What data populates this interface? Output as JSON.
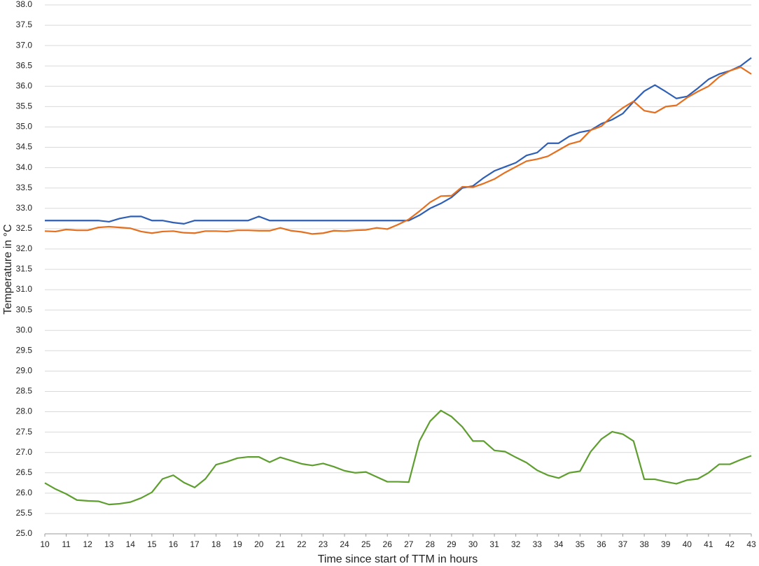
{
  "chart_data": {
    "type": "line",
    "x_label": "Time since start of TTM in hours",
    "y_label": "Temperature in °C",
    "x": [
      10,
      10.5,
      11,
      11.5,
      12,
      12.5,
      13,
      13.5,
      14,
      14.5,
      15,
      15.5,
      16,
      16.5,
      17,
      17.5,
      18,
      18.5,
      19,
      19.5,
      20,
      20.5,
      21,
      21.5,
      22,
      22.5,
      23,
      23.5,
      24,
      24.5,
      25,
      25.5,
      26,
      26.5,
      27,
      27.5,
      28,
      28.5,
      29,
      29.5,
      30,
      30.5,
      31,
      31.5,
      32,
      32.5,
      33,
      33.5,
      34,
      34.5,
      35,
      35.5,
      36,
      36.5,
      37,
      37.5,
      38,
      38.5,
      39,
      39.5,
      40,
      40.5,
      41,
      41.5,
      42,
      42.5,
      43
    ],
    "series": [
      {
        "color": "#2e5fb5",
        "values": [
          32.7,
          32.7,
          32.7,
          32.7,
          32.7,
          32.7,
          32.67,
          32.75,
          32.8,
          32.8,
          32.7,
          32.7,
          32.65,
          32.62,
          32.7,
          32.7,
          32.7,
          32.7,
          32.7,
          32.7,
          32.8,
          32.7,
          32.7,
          32.7,
          32.7,
          32.7,
          32.7,
          32.7,
          32.7,
          32.7,
          32.7,
          32.7,
          32.7,
          32.7,
          32.7,
          32.83,
          33.0,
          33.12,
          33.27,
          33.5,
          33.55,
          33.75,
          33.92,
          34.02,
          34.12,
          34.3,
          34.37,
          34.6,
          34.6,
          34.77,
          34.87,
          34.92,
          35.08,
          35.18,
          35.33,
          35.62,
          35.88,
          36.03,
          35.87,
          35.7,
          35.75,
          35.95,
          36.17,
          36.3,
          36.38,
          36.5,
          36.7
        ]
      },
      {
        "color": "#e46f1f",
        "values": [
          32.44,
          32.43,
          32.48,
          32.46,
          32.46,
          32.53,
          32.55,
          32.53,
          32.51,
          32.43,
          32.39,
          32.43,
          32.44,
          32.4,
          32.39,
          32.44,
          32.44,
          32.43,
          32.46,
          32.46,
          32.45,
          32.45,
          32.52,
          32.45,
          32.42,
          32.37,
          32.39,
          32.45,
          32.44,
          32.46,
          32.47,
          32.52,
          32.49,
          32.6,
          32.73,
          32.93,
          33.15,
          33.3,
          33.31,
          33.53,
          33.52,
          33.61,
          33.72,
          33.88,
          34.02,
          34.16,
          34.21,
          34.28,
          34.43,
          34.58,
          34.65,
          34.92,
          35.02,
          35.27,
          35.47,
          35.63,
          35.4,
          35.35,
          35.5,
          35.53,
          35.72,
          35.87,
          36.0,
          36.23,
          36.38,
          36.47,
          36.3
        ]
      },
      {
        "color": "#5e9e2f",
        "values": [
          26.25,
          26.1,
          25.98,
          25.83,
          25.81,
          25.8,
          25.72,
          25.74,
          25.78,
          25.88,
          26.02,
          26.35,
          26.44,
          26.26,
          26.14,
          26.35,
          26.7,
          26.77,
          26.86,
          26.89,
          26.89,
          26.76,
          26.88,
          26.8,
          26.72,
          26.68,
          26.73,
          26.65,
          26.55,
          26.5,
          26.52,
          26.4,
          26.28,
          26.28,
          26.27,
          27.28,
          27.77,
          28.03,
          27.88,
          27.63,
          27.28,
          27.28,
          27.05,
          27.02,
          26.88,
          26.75,
          26.56,
          26.44,
          26.37,
          26.5,
          26.54,
          27.02,
          27.33,
          27.51,
          27.45,
          27.28,
          26.34,
          26.34,
          26.28,
          26.23,
          26.32,
          26.35,
          26.5,
          26.71,
          26.71,
          26.82,
          26.92
        ]
      }
    ],
    "xlim": [
      10,
      43
    ],
    "xticks": [
      10,
      11,
      12,
      13,
      14,
      15,
      16,
      17,
      18,
      19,
      20,
      21,
      22,
      23,
      24,
      25,
      26,
      27,
      28,
      29,
      30,
      31,
      32,
      33,
      34,
      35,
      36,
      37,
      38,
      39,
      40,
      41,
      42,
      43
    ],
    "ylim": [
      25,
      38
    ],
    "yticks": [
      {
        "value": 25,
        "label": "25.0"
      },
      {
        "value": 25.5,
        "label": "25.5"
      },
      {
        "value": 26,
        "label": "26.0"
      },
      {
        "value": 26.5,
        "label": "26.5"
      },
      {
        "value": 27,
        "label": "27.0"
      },
      {
        "value": 27.5,
        "label": "27.5"
      },
      {
        "value": 28,
        "label": "28.0"
      },
      {
        "value": 28.5,
        "label": "28.5"
      },
      {
        "value": 29,
        "label": "29.0"
      },
      {
        "value": 29.5,
        "label": "29.5"
      },
      {
        "value": 30,
        "label": "30.0"
      },
      {
        "value": 30.5,
        "label": "30.5"
      },
      {
        "value": 31,
        "label": "31.0"
      },
      {
        "value": 31.5,
        "label": "31.5"
      },
      {
        "value": 32,
        "label": "32.0"
      },
      {
        "value": 32.5,
        "label": "32.5"
      },
      {
        "value": 33,
        "label": "33.0"
      },
      {
        "value": 33.5,
        "label": "33.5"
      },
      {
        "value": 34,
        "label": "34.0"
      },
      {
        "value": 34.5,
        "label": "34.5"
      },
      {
        "value": 35,
        "label": "35.0"
      },
      {
        "value": 35.5,
        "label": "35.5"
      },
      {
        "value": 36,
        "label": "36.0"
      },
      {
        "value": 36.5,
        "label": "36.5"
      },
      {
        "value": 37,
        "label": "37.0"
      },
      {
        "value": 37.5,
        "label": "37.5"
      },
      {
        "value": 38,
        "label": "38.0"
      }
    ],
    "grid": true
  }
}
